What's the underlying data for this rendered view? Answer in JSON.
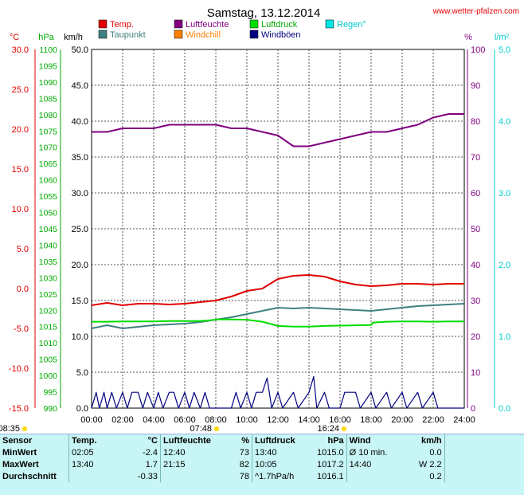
{
  "header": {
    "title": "Samstag, 13.12.2014",
    "site": "www.wetter-pfalzen.com"
  },
  "legend": [
    {
      "label": "Temp.",
      "color": "#e00000"
    },
    {
      "label": "Luftfeuchte",
      "color": "#800080"
    },
    {
      "label": "Luftdruck",
      "color": "#00dd00"
    },
    {
      "label": "Regen°",
      "color": "#00e5e5"
    },
    {
      "label": "Taupunkt",
      "color": "#408080"
    },
    {
      "label": "Windchill",
      "color": "#ff8000"
    },
    {
      "label": "Windböen",
      "color": "#000080"
    }
  ],
  "units": {
    "temp": "°C",
    "pressure": "hPa",
    "wind": "km/h",
    "humidity": "%",
    "rain": "l/m²"
  },
  "sun": {
    "sunrise": "08:35",
    "sunset": "16:24",
    "noon": "07:48"
  },
  "chart_data": {
    "type": "line",
    "title": "Samstag, 13.12.2014",
    "x_ticks": [
      "00:00",
      "02:00",
      "04:00",
      "06:00",
      "08:00",
      "10:00",
      "12:00",
      "14:00",
      "16:00",
      "18:00",
      "20:00",
      "22:00",
      "24:00"
    ],
    "axes": {
      "temp": {
        "ylim": [
          -15,
          30
        ],
        "ticks": [
          "30.0",
          "25.0",
          "20.0",
          "15.0",
          "10.0",
          "5.0",
          "0.0",
          "-5.0",
          "-10.0",
          "-15.0"
        ],
        "color": "#e00000"
      },
      "pressure": {
        "ylim": [
          990,
          1100
        ],
        "ticks": [
          "1100",
          "1095",
          "1090",
          "1085",
          "1080",
          "1075",
          "1070",
          "1065",
          "1060",
          "1055",
          "1050",
          "1045",
          "1040",
          "1035",
          "1030",
          "1025",
          "1020",
          "1015",
          "1010",
          "1005",
          "1000",
          "995",
          "990"
        ],
        "color": "#00aa00"
      },
      "wind": {
        "ylim": [
          0,
          50
        ],
        "ticks": [
          "50.0",
          "45.0",
          "40.0",
          "35.0",
          "30.0",
          "25.0",
          "20.0",
          "15.0",
          "10.0",
          "5.0",
          "0.0"
        ],
        "color": "#000000"
      },
      "humidity": {
        "ylim": [
          0,
          100
        ],
        "ticks": [
          "100",
          "90",
          "80",
          "70",
          "60",
          "50",
          "40",
          "30",
          "20",
          "10",
          "0"
        ],
        "color": "#800080"
      },
      "rain": {
        "ylim": [
          0,
          5
        ],
        "ticks": [
          "5.0",
          "4.0",
          "3.0",
          "2.0",
          "1.0",
          "0.0"
        ],
        "color": "#00cccc"
      }
    },
    "series": [
      {
        "name": "Luftfeuchte",
        "axis": "humidity",
        "color": "#800080",
        "x": [
          0,
          1,
          2,
          3,
          4,
          5,
          6,
          7,
          8,
          9,
          10,
          11,
          12,
          13,
          14,
          15,
          16,
          17,
          18,
          19,
          20,
          21,
          22,
          23,
          24
        ],
        "y": [
          77,
          77,
          78,
          78,
          78,
          79,
          79,
          79,
          79,
          78,
          78,
          77,
          76,
          73,
          73,
          74,
          75,
          76,
          77,
          77,
          78,
          79,
          81,
          82,
          82
        ]
      },
      {
        "name": "Temp.",
        "axis": "temp",
        "color": "#e00000",
        "x": [
          0,
          1,
          2,
          3,
          4,
          5,
          6,
          7,
          8,
          9,
          10,
          11,
          12,
          13,
          14,
          15,
          16,
          17,
          18,
          19,
          20,
          21,
          22,
          23,
          24
        ],
        "y": [
          -2.1,
          -1.8,
          -2.1,
          -1.9,
          -1.9,
          -2.0,
          -1.9,
          -1.7,
          -1.5,
          -1.0,
          -0.3,
          0.0,
          1.2,
          1.6,
          1.7,
          1.5,
          0.9,
          0.5,
          0.3,
          0.4,
          0.6,
          0.6,
          0.5,
          0.6,
          0.6
        ]
      },
      {
        "name": "Taupunkt",
        "axis": "temp",
        "color": "#408080",
        "x": [
          0,
          1,
          2,
          3,
          4,
          5,
          6,
          7,
          8,
          9,
          10,
          11,
          12,
          13,
          14,
          15,
          16,
          17,
          18,
          19,
          20,
          21,
          22,
          23,
          24
        ],
        "y": [
          -5.0,
          -4.6,
          -5.0,
          -4.8,
          -4.6,
          -4.5,
          -4.4,
          -4.2,
          -3.9,
          -3.6,
          -3.2,
          -2.8,
          -2.4,
          -2.5,
          -2.4,
          -2.5,
          -2.6,
          -2.7,
          -2.8,
          -2.6,
          -2.4,
          -2.2,
          -2.1,
          -2.0,
          -1.9
        ]
      },
      {
        "name": "Luftdruck",
        "axis": "pressure",
        "color": "#00dd00",
        "x": [
          0,
          1,
          2,
          3,
          4,
          5,
          6,
          7,
          7.8,
          8,
          9,
          10,
          11,
          12,
          13,
          14,
          15,
          16,
          17,
          18,
          18.1,
          19,
          20,
          21,
          22,
          23,
          24
        ],
        "y": [
          1016.5,
          1016.5,
          1016.6,
          1016.6,
          1016.6,
          1016.7,
          1016.7,
          1016.7,
          1017.0,
          1017.2,
          1017.2,
          1017.1,
          1016.5,
          1015.2,
          1015.0,
          1015.0,
          1015.2,
          1015.3,
          1015.4,
          1015.5,
          1016.2,
          1016.5,
          1016.6,
          1016.6,
          1016.5,
          1016.6,
          1016.6
        ]
      },
      {
        "name": "Windböen",
        "axis": "wind",
        "color": "#000080",
        "x": [
          0,
          0.3,
          0.5,
          0.8,
          1.0,
          1.3,
          1.6,
          2.0,
          2.3,
          2.6,
          3.0,
          3.3,
          3.6,
          4.0,
          4.3,
          4.6,
          5.0,
          5.3,
          5.6,
          6.0,
          6.3,
          6.6,
          7.0,
          7.3,
          7.6,
          8.0,
          9.0,
          9.3,
          9.6,
          10.0,
          10.3,
          10.6,
          11.0,
          11.3,
          11.6,
          12.0,
          12.3,
          13.0,
          13.3,
          14.0,
          14.3,
          14.5,
          15.0,
          15.3,
          16.0,
          16.3,
          17.0,
          17.3,
          18.0,
          18.3,
          19.0,
          19.3,
          20.0,
          20.3,
          21.0,
          21.3,
          22.0,
          22.3,
          23.0,
          24.0
        ],
        "y": [
          0,
          2.2,
          0,
          2.2,
          0,
          2.2,
          0,
          2.2,
          0,
          2.2,
          2.2,
          0,
          2.2,
          0,
          2.2,
          0,
          2.2,
          2.2,
          0,
          2.2,
          0,
          2.2,
          0,
          2.2,
          0,
          0,
          0,
          2.2,
          0,
          2.2,
          0,
          2.2,
          2.2,
          4.2,
          0,
          2.2,
          0,
          2.2,
          0,
          2.2,
          4.4,
          0,
          2.2,
          0,
          0,
          2.2,
          2.2,
          0,
          2.2,
          0,
          2.2,
          0,
          2.2,
          0,
          2.2,
          0,
          2.2,
          0,
          0,
          0
        ]
      }
    ]
  },
  "stats": {
    "headers": {
      "sensor": "Sensor",
      "temp": "Temp.",
      "temp_unit": "°C",
      "hum": "Luftfeuchte",
      "hum_unit": "%",
      "press": "Luftdruck",
      "press_unit": "hPa",
      "wind": "Wind",
      "wind_unit": "km/h"
    },
    "rows": [
      {
        "label": "MinWert",
        "t_time": "02:05",
        "t_val": "-2.4",
        "h_time": "12:40",
        "h_val": "73",
        "p_time": "13:40",
        "p_val": "1015.0",
        "w_time": "Ø 10 min.",
        "w_val": "0.0"
      },
      {
        "label": "MaxWert",
        "t_time": "13:40",
        "t_val": "1.7",
        "h_time": "21:15",
        "h_val": "82",
        "p_time": "10:05",
        "p_val": "1017.2",
        "w_time": "14:40",
        "w_val": "W 2.2"
      },
      {
        "label": "Durchschnitt",
        "t_time": "",
        "t_val": "-0.33",
        "h_time": "",
        "h_val": "78",
        "p_time": "^1.7hPa/h",
        "p_val": "1016.1",
        "w_time": "",
        "w_val": "0.2"
      }
    ]
  }
}
